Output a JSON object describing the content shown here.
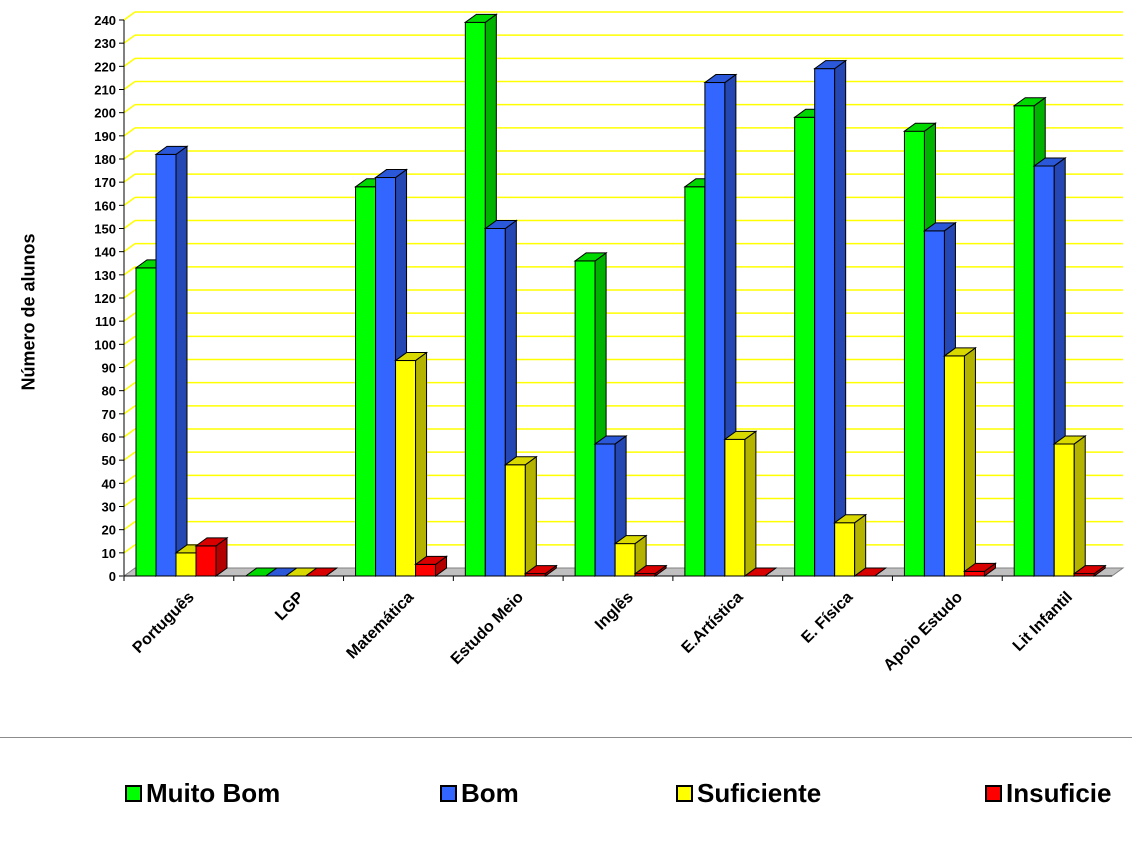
{
  "chart_data": {
    "type": "bar",
    "ylabel": "Número de alunos",
    "ylim": [
      0,
      240
    ],
    "ytick_step": 10,
    "grid": true,
    "grid_color": "#ffff00",
    "legend_position": "bottom",
    "categories": [
      "Português",
      "LGP",
      "Matemática",
      "Estudo Meio",
      "Inglês",
      "E.Artística",
      "E. Física",
      "Apoio Estudo",
      "Lit Infantil"
    ],
    "series": [
      {
        "name": "Muito Bom",
        "color": "#00ff00",
        "values": [
          133,
          0,
          168,
          239,
          136,
          168,
          198,
          192,
          203
        ]
      },
      {
        "name": "Bom",
        "color": "#3366ff",
        "values": [
          182,
          0,
          172,
          150,
          57,
          213,
          219,
          149,
          177
        ]
      },
      {
        "name": "Suficiente",
        "color": "#ffff00",
        "values": [
          10,
          0,
          93,
          48,
          14,
          59,
          23,
          95,
          57
        ]
      },
      {
        "name": "Insuficiente",
        "color": "#ff0000",
        "values": [
          13,
          0,
          5,
          1,
          1,
          0,
          0,
          2,
          1
        ]
      }
    ],
    "legend_labels": [
      "Muito Bom",
      "Bom",
      "Suficiente",
      "Insuficie"
    ]
  }
}
